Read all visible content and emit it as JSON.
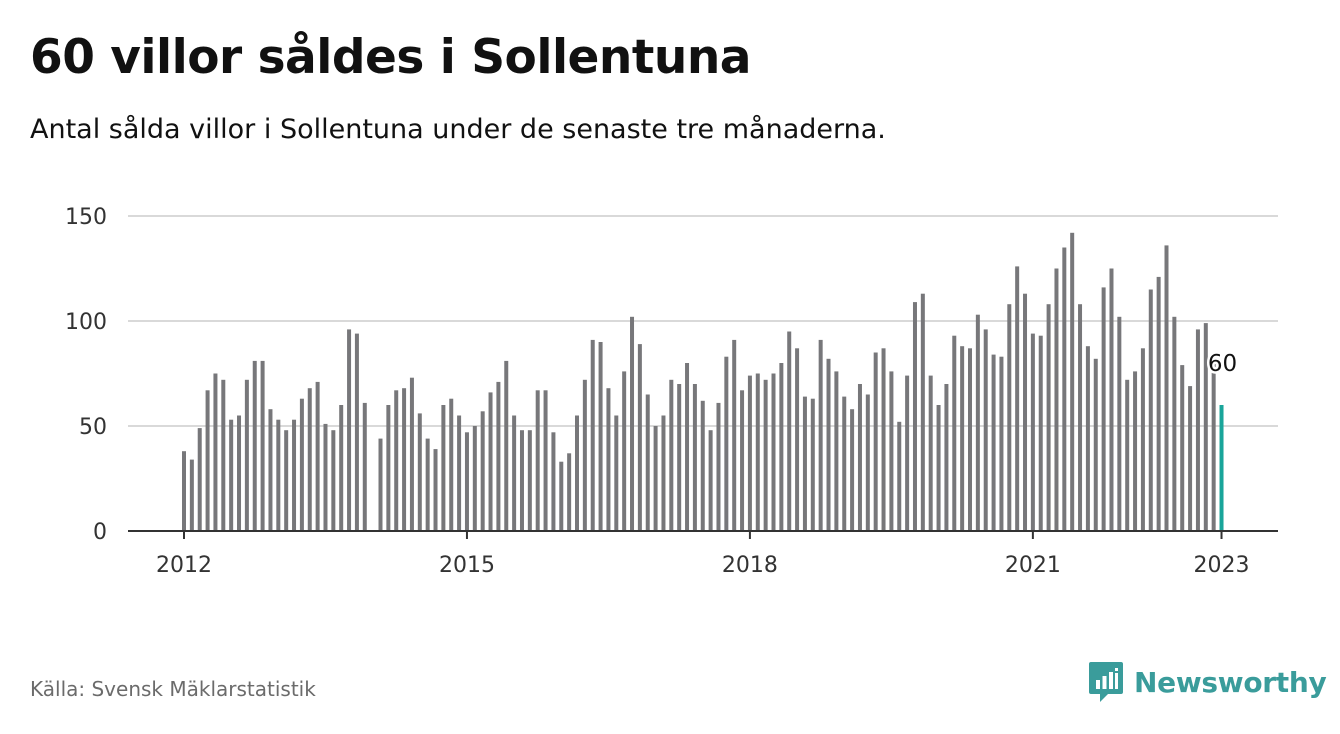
{
  "title": "60 villor såldes i Sollentuna",
  "subtitle": "Antal sålda villor i Sollentuna under de senaste tre månaderna.",
  "source": "Källa: Svensk Mäklarstatistik",
  "brand": {
    "name": "Newsworthy",
    "icon": "newsworthy-logo-icon",
    "color": "#3a9c9b"
  },
  "colors": {
    "bar": "#77777a",
    "highlight": "#1aa59a",
    "grid": "#d9d9d9",
    "axis": "#333333"
  },
  "chart_data": {
    "type": "bar",
    "ylim": [
      0,
      150
    ],
    "yticks": [
      0,
      50,
      100,
      150
    ],
    "xticks": [
      {
        "label": "2012",
        "index": 0
      },
      {
        "label": "2015",
        "index": 36
      },
      {
        "label": "2018",
        "index": 72
      },
      {
        "label": "2021",
        "index": 108
      },
      {
        "label": "2023",
        "index": 132
      }
    ],
    "highlight_label": "60",
    "values": [
      38,
      34,
      49,
      67,
      75,
      72,
      53,
      55,
      72,
      81,
      81,
      58,
      53,
      48,
      53,
      63,
      68,
      71,
      51,
      48,
      60,
      96,
      94,
      61,
      null,
      44,
      60,
      67,
      68,
      73,
      56,
      44,
      39,
      60,
      63,
      55,
      47,
      50,
      57,
      66,
      71,
      81,
      55,
      48,
      48,
      67,
      67,
      47,
      33,
      37,
      55,
      72,
      91,
      90,
      68,
      55,
      76,
      102,
      89,
      65,
      50,
      55,
      72,
      70,
      80,
      70,
      62,
      48,
      61,
      83,
      91,
      67,
      74,
      75,
      72,
      75,
      80,
      95,
      87,
      64,
      63,
      91,
      82,
      76,
      64,
      58,
      70,
      65,
      85,
      87,
      76,
      52,
      74,
      109,
      113,
      74,
      60,
      70,
      93,
      88,
      87,
      103,
      96,
      84,
      83,
      108,
      126,
      113,
      94,
      93,
      108,
      125,
      135,
      142,
      108,
      88,
      82,
      116,
      125,
      102,
      72,
      76,
      87,
      115,
      121,
      136,
      102,
      79,
      69,
      96,
      99,
      82,
      60
    ]
  }
}
